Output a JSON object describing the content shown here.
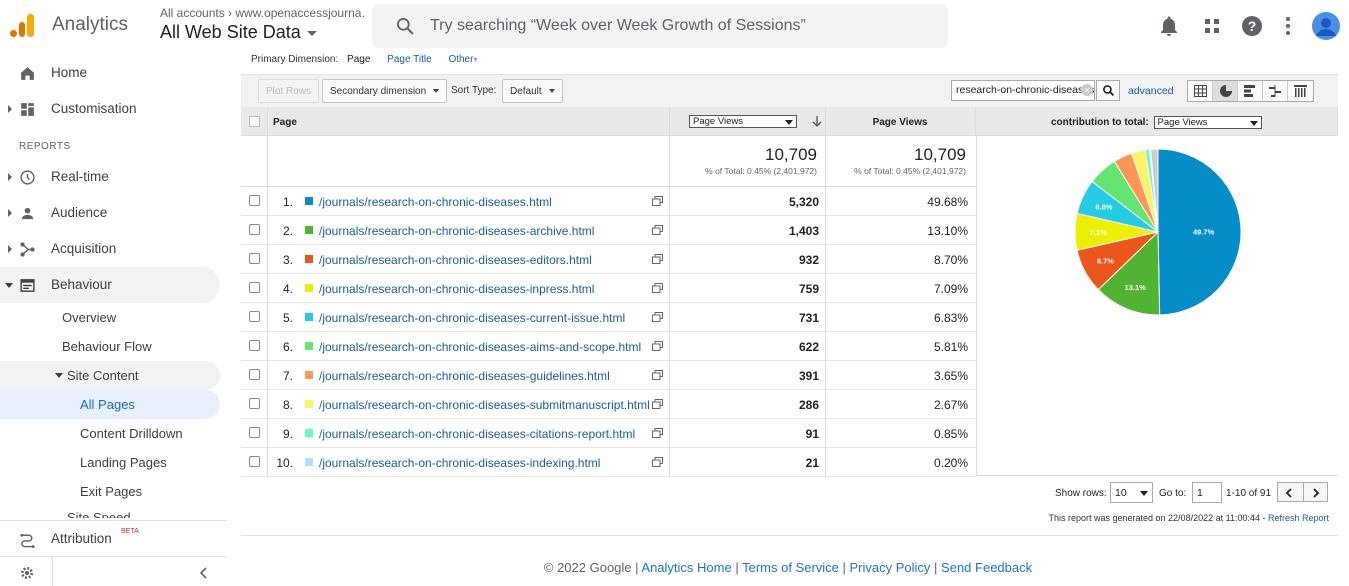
{
  "header": {
    "app_title": "Analytics",
    "account_path": "All accounts › www.openaccessjourna…",
    "account_view": "All Web Site Data",
    "search_placeholder": "Try searching “Week over Week Growth of Sessions”",
    "icons": [
      "bell-icon",
      "apps-grid-icon",
      "help-icon",
      "more-vert-icon",
      "account-avatar-icon"
    ]
  },
  "sidebar": {
    "home": "Home",
    "customisation": "Customisation",
    "reports_label": "REPORTS",
    "realtime": "Real-time",
    "audience": "Audience",
    "acquisition": "Acquisition",
    "behaviour": "Behaviour",
    "overview": "Overview",
    "behaviour_flow": "Behaviour Flow",
    "site_content": "Site Content",
    "all_pages": "All Pages",
    "content_drilldown": "Content Drilldown",
    "landing_pages": "Landing Pages",
    "exit_pages": "Exit Pages",
    "site_speed": "Site Speed",
    "attribution": "Attribution",
    "beta": "BETA"
  },
  "report": {
    "primary_dimension_label": "Primary Dimension:",
    "dim_page": "Page",
    "dim_page_title": "Page Title",
    "dim_other": "Other",
    "plot_rows": "Plot Rows",
    "secondary_dimension": "Secondary dimension",
    "sort_type_label": "Sort Type:",
    "sort_type_value": "Default",
    "filter_value": "research-on-chronic-diseases",
    "advanced": "advanced",
    "col_page": "Page",
    "col_metric_select": "Page Views",
    "col_page_views": "Page Views",
    "contribution_label": "contribution to total:",
    "contribution_select": "Page Views",
    "total_value_1": "10,709",
    "total_sub_1": "% of Total: 0.45% (2,401,972)",
    "total_value_2": "10,709",
    "total_sub_2": "% of Total: 0.45% (2,401,972)",
    "rows": [
      {
        "num": "1.",
        "page": "/journals/research-on-chronic-diseases.html",
        "views": "5,320",
        "pct": "49.68%",
        "color": "#058dc7"
      },
      {
        "num": "2.",
        "page": "/journals/research-on-chronic-diseases-archive.html",
        "views": "1,403",
        "pct": "13.10%",
        "color": "#50b432"
      },
      {
        "num": "3.",
        "page": "/journals/research-on-chronic-diseases-editors.html",
        "views": "932",
        "pct": "8.70%",
        "color": "#ed561b"
      },
      {
        "num": "4.",
        "page": "/journals/research-on-chronic-diseases-inpress.html",
        "views": "759",
        "pct": "7.09%",
        "color": "#edef00"
      },
      {
        "num": "5.",
        "page": "/journals/research-on-chronic-diseases-current-issue.html",
        "views": "731",
        "pct": "6.83%",
        "color": "#24cbe5"
      },
      {
        "num": "6.",
        "page": "/journals/research-on-chronic-diseases-aims-and-scope.html",
        "views": "622",
        "pct": "5.81%",
        "color": "#64e572"
      },
      {
        "num": "7.",
        "page": "/journals/research-on-chronic-diseases-guidelines.html",
        "views": "391",
        "pct": "3.65%",
        "color": "#ff9655"
      },
      {
        "num": "8.",
        "page": "/journals/research-on-chronic-diseases-submitmanuscript.html",
        "views": "286",
        "pct": "2.67%",
        "color": "#fff263"
      },
      {
        "num": "9.",
        "page": "/journals/research-on-chronic-diseases-citations-report.html",
        "views": "91",
        "pct": "0.85%",
        "color": "#6af9c4"
      },
      {
        "num": "10.",
        "page": "/journals/research-on-chronic-diseases-indexing.html",
        "views": "21",
        "pct": "0.20%",
        "color": "#b2deff"
      }
    ],
    "pie": {
      "values": [
        49.68,
        13.1,
        8.7,
        7.09,
        6.83,
        5.81,
        3.65,
        2.67,
        0.85,
        0.2,
        1.42
      ],
      "colors": [
        "#058dc7",
        "#50b432",
        "#ed561b",
        "#edef00",
        "#24cbe5",
        "#64e572",
        "#ff9655",
        "#fff263",
        "#6af9c4",
        "#b2deff",
        "#cccccc"
      ],
      "labels": [
        "49.7%",
        "13.1%",
        "8.7%",
        "7.1%",
        "6.8%",
        "",
        "",
        "",
        "",
        "",
        ""
      ]
    },
    "show_rows_label": "Show rows:",
    "show_rows_value": "10",
    "goto_label": "Go to:",
    "goto_value": "1",
    "range": "1-10 of 91",
    "generated_text": "This report was generated on 22/08/2022 at 11:00:44 - ",
    "refresh": "Refresh Report"
  },
  "footer": {
    "copyright": "© 2022 Google | ",
    "analytics_home": "Analytics Home",
    "sep": " | ",
    "terms": "Terms of Service",
    "privacy": "Privacy Policy",
    "feedback": "Send Feedback"
  }
}
